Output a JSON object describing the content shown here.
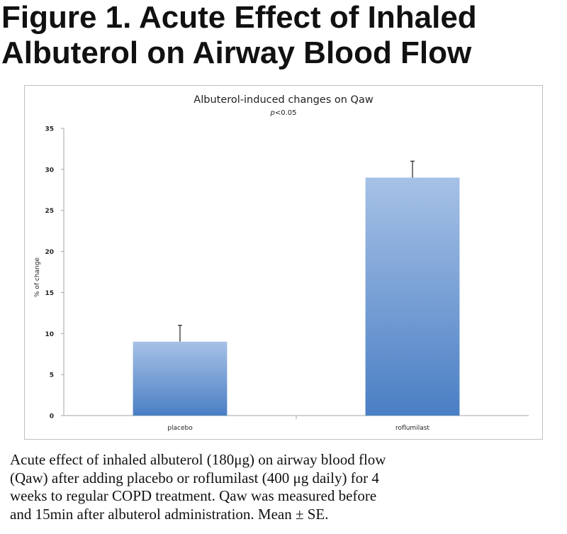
{
  "figure": {
    "title": "Figure 1. Acute Effect of Inhaled Albuterol on Airway Blood Flow",
    "caption": "Acute effect of inhaled albuterol (180μg) on airway blood flow\n(Qaw) after adding placebo or roflumilast (400 μg daily) for 4\nweeks to regular COPD treatment. Qaw was measured before\nand 15min after albuterol administration. Mean ± SE."
  },
  "chart_data": {
    "type": "bar",
    "title": "Albuterol-induced changes on Qaw",
    "subtitle_italic": "p",
    "subtitle_rest": "<0.05",
    "xlabel": "",
    "ylabel": "% of change",
    "categories": [
      "placebo",
      "roflumilast"
    ],
    "values": [
      9,
      29
    ],
    "error_upper": [
      2,
      2
    ],
    "ylim": [
      0,
      35
    ],
    "yticks": [
      0,
      5,
      10,
      15,
      20,
      25,
      30,
      35
    ],
    "grid": false,
    "legend": "none",
    "colors": {
      "bar_top": "#a6c1e6",
      "bar_bottom": "#4a7fc4",
      "axis": "#a6a6a6",
      "error": "#222222"
    }
  }
}
